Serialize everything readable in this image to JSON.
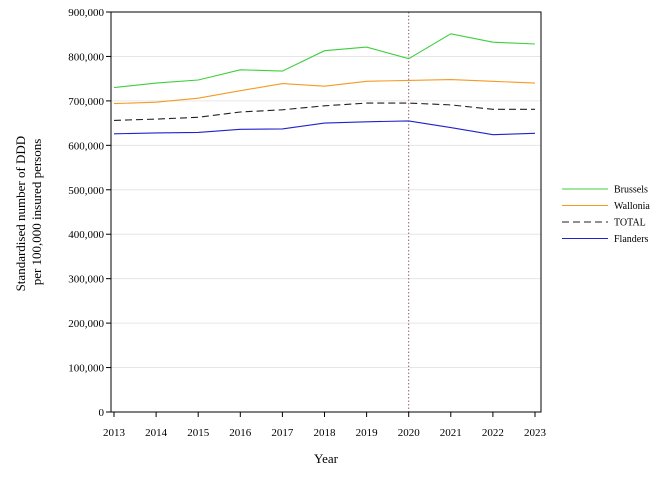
{
  "chart_data": {
    "type": "line",
    "xlabel": "Year",
    "ylabel": [
      "Standardised number of DDD",
      "per 100,000 insured persons"
    ],
    "categories": [
      "2013",
      "2014",
      "2015",
      "2016",
      "2017",
      "2018",
      "2019",
      "2020",
      "2021",
      "2022",
      "2023"
    ],
    "ylim": [
      0,
      900000
    ],
    "yticks": [
      0,
      100000,
      200000,
      300000,
      400000,
      500000,
      600000,
      700000,
      800000,
      900000
    ],
    "ytick_labels": [
      "0",
      "100,000",
      "200,000",
      "300,000",
      "400,000",
      "500,000",
      "600,000",
      "700,000",
      "800,000",
      "900,000"
    ],
    "grid": "horizontal",
    "reference_line": {
      "x": "2020",
      "style": "dotted",
      "color": "#a05a7a"
    },
    "legend_position": "right",
    "series": [
      {
        "name": "Brussels",
        "color": "#3ccf3c",
        "dash": "solid",
        "values": [
          730000,
          740000,
          747000,
          770000,
          767000,
          813000,
          821000,
          795000,
          851000,
          832000,
          828000
        ]
      },
      {
        "name": "Wallonia",
        "color": "#f59a23",
        "dash": "solid",
        "values": [
          694000,
          697000,
          706000,
          723000,
          739000,
          733000,
          744000,
          746000,
          748000,
          744000,
          740000
        ]
      },
      {
        "name": "TOTAL",
        "color": "#222222",
        "dash": "dashed",
        "values": [
          656000,
          659000,
          663000,
          675000,
          680000,
          689000,
          695000,
          695000,
          691000,
          681000,
          681000
        ]
      },
      {
        "name": "Flanders",
        "color": "#2222cc",
        "dash": "solid",
        "values": [
          626000,
          628000,
          629000,
          636000,
          637000,
          650000,
          653000,
          655000,
          640000,
          624000,
          627000
        ]
      }
    ]
  }
}
